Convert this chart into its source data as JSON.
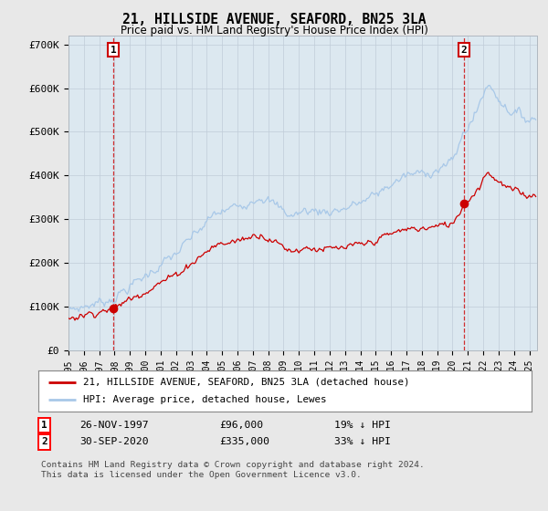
{
  "title": "21, HILLSIDE AVENUE, SEAFORD, BN25 3LA",
  "subtitle": "Price paid vs. HM Land Registry's House Price Index (HPI)",
  "legend_line1": "21, HILLSIDE AVENUE, SEAFORD, BN25 3LA (detached house)",
  "legend_line2": "HPI: Average price, detached house, Lewes",
  "transaction1_label": "1",
  "transaction1_date": "26-NOV-1997",
  "transaction1_price": "£96,000",
  "transaction1_hpi": "19% ↓ HPI",
  "transaction2_label": "2",
  "transaction2_date": "30-SEP-2020",
  "transaction2_price": "£335,000",
  "transaction2_hpi": "33% ↓ HPI",
  "footer": "Contains HM Land Registry data © Crown copyright and database right 2024.\nThis data is licensed under the Open Government Licence v3.0.",
  "hpi_color": "#a8c8e8",
  "price_color": "#cc0000",
  "marker_color": "#cc0000",
  "background_color": "#e8e8e8",
  "plot_bg_color": "#dce8f0",
  "ylim": [
    0,
    720000
  ],
  "ylabel_ticks": [
    0,
    100000,
    200000,
    300000,
    400000,
    500000,
    600000,
    700000
  ],
  "ylabel_labels": [
    "£0",
    "£100K",
    "£200K",
    "£300K",
    "£400K",
    "£500K",
    "£600K",
    "£700K"
  ],
  "t_trans1": 1997.917,
  "t_trans2": 2020.75,
  "price1": 96000,
  "price2": 335000,
  "xmin": 1995,
  "xmax": 2025.5
}
